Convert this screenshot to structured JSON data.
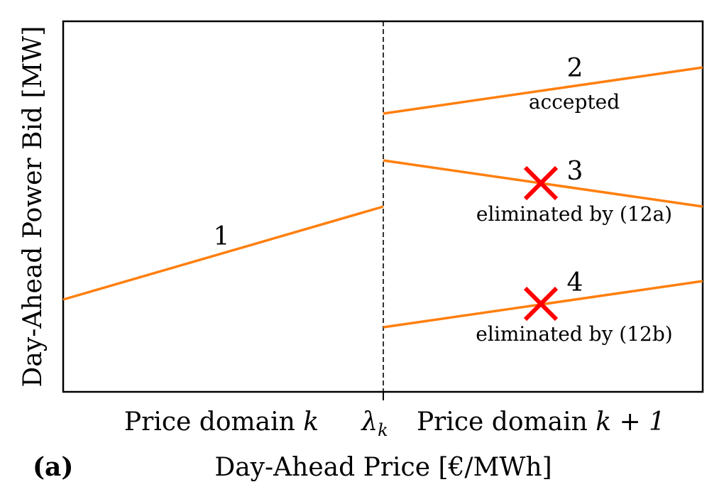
{
  "axes": {
    "ylabel": "Day-Ahead Power Bid [MW]",
    "xlabel": "Day-Ahead Price [€/MWh]",
    "panel_label": "(a)"
  },
  "domains": {
    "left": "Price domain",
    "left_var": "k",
    "right": "Price domain",
    "right_var": "k + 1",
    "boundary_symbol": "λ",
    "boundary_sub": "k"
  },
  "bids": [
    {
      "id": "1",
      "number": "1",
      "note": "",
      "status": "accepted",
      "color": "#ff7f0e"
    },
    {
      "id": "2",
      "number": "2",
      "note": "accepted",
      "status": "accepted",
      "color": "#ff7f0e"
    },
    {
      "id": "3",
      "number": "3",
      "note": "eliminated by (12a)",
      "status": "eliminated",
      "color": "#ff7f0e"
    },
    {
      "id": "4",
      "number": "4",
      "note": "eliminated by (12b)",
      "status": "eliminated",
      "color": "#ff7f0e"
    }
  ],
  "colors": {
    "bid_line": "#ff7f0e",
    "elimination_mark": "#ff0000",
    "boundary_line": "#000000"
  },
  "icons": {
    "elimination": "red-x-icon"
  }
}
